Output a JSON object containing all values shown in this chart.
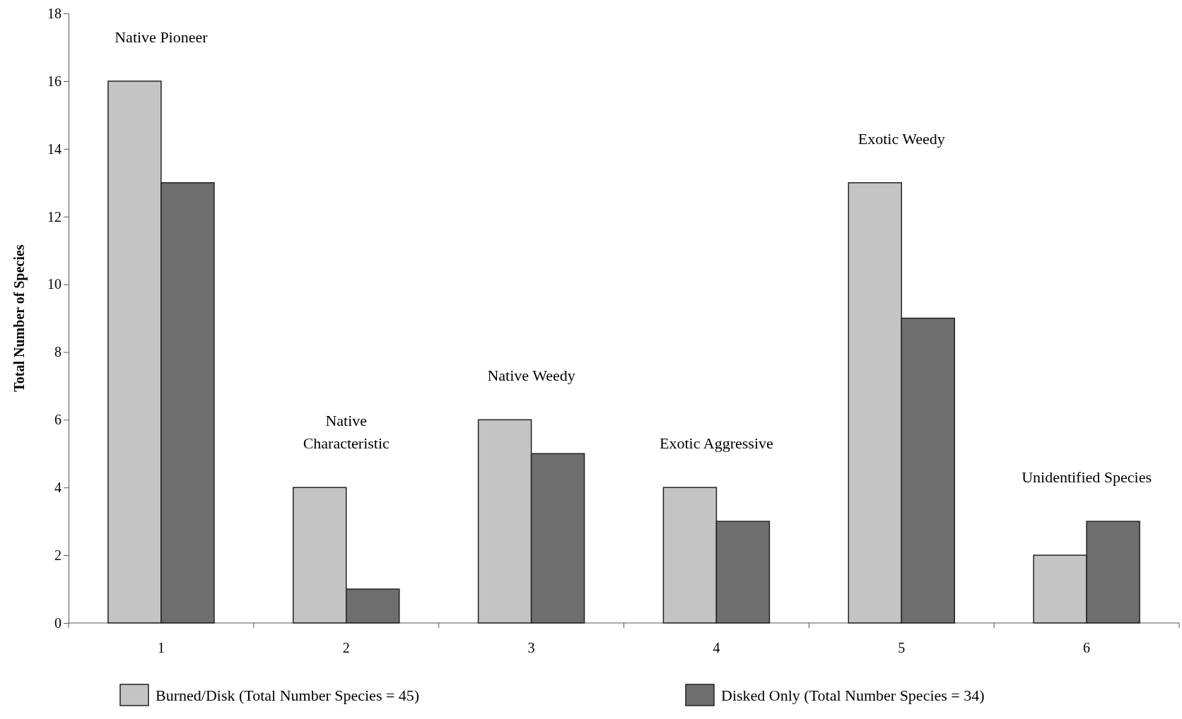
{
  "chart_data": {
    "type": "bar",
    "ylabel": "Total Number of Species",
    "categories": [
      "1",
      "2",
      "3",
      "4",
      "5",
      "6"
    ],
    "series": [
      {
        "name": "Burned/Disk (Total Number Species = 45)",
        "color": "#c4c4c4",
        "values": [
          16,
          4,
          6,
          4,
          13,
          2
        ]
      },
      {
        "name": "Disked Only (Total Number Species = 34)",
        "color": "#6e6e6e",
        "values": [
          13,
          1,
          5,
          3,
          9,
          3
        ]
      }
    ],
    "ylim": [
      0,
      18
    ],
    "yticks": [
      0,
      2,
      4,
      6,
      8,
      10,
      12,
      14,
      16,
      18
    ],
    "grid": false,
    "legend": "bottom",
    "annotations": [
      "Native Pioneer",
      "Native\nCharacteristic",
      "Native Weedy",
      "Exotic Aggressive",
      "Exotic Weedy",
      "Unidentified Species"
    ]
  }
}
